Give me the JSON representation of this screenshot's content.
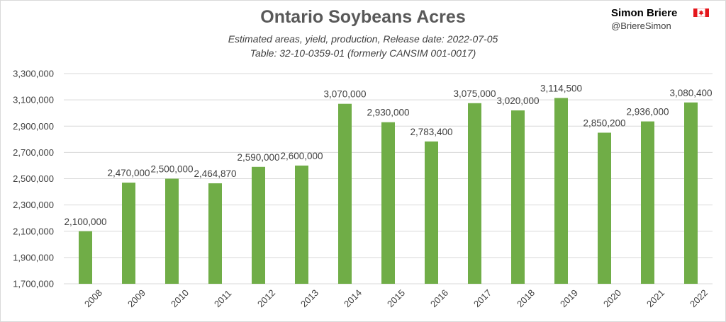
{
  "header": {
    "title": "Ontario Soybeans Acres",
    "subtitle_line1": "Estimated areas, yield, production, Release date: 2022-07-05",
    "subtitle_line2": "Table: 32-10-0359-01 (formerly CANSIM 001-0017)",
    "author": "Simon Briere",
    "handle": "@BriereSimon",
    "flag_icon": "canada-flag-icon"
  },
  "colors": {
    "bar": "#70ad47",
    "grid": "#d9d9d9",
    "text": "#404040",
    "flag_red": "#e4161c"
  },
  "chart_data": {
    "type": "bar",
    "title": "Ontario Soybeans Acres",
    "categories": [
      "2008",
      "2009",
      "2010",
      "2011",
      "2012",
      "2013",
      "2014",
      "2015",
      "2016",
      "2017",
      "2018",
      "2019",
      "2020",
      "2021",
      "2022"
    ],
    "values": [
      2100000,
      2470000,
      2500000,
      2464870,
      2590000,
      2600000,
      3070000,
      2930000,
      2783400,
      3075000,
      3020000,
      3114500,
      2850200,
      2936000,
      3080400
    ],
    "value_labels": [
      "2,100,000",
      "2,470,000",
      "2,500,000",
      "2,464,870",
      "2,590,000",
      "2,600,000",
      "3,070,000",
      "2,930,000",
      "2,783,400",
      "3,075,000",
      "3,020,000",
      "3,114,500",
      "2,850,200",
      "2,936,000",
      "3,080,400"
    ],
    "ylim": [
      1700000,
      3300000
    ],
    "yticks": [
      1700000,
      1900000,
      2100000,
      2300000,
      2500000,
      2700000,
      2900000,
      3100000,
      3300000
    ],
    "ytick_labels": [
      "1,700,000",
      "1,900,000",
      "2,100,000",
      "2,300,000",
      "2,500,000",
      "2,700,000",
      "2,900,000",
      "3,100,000",
      "3,300,000"
    ],
    "xlabel": "",
    "ylabel": "",
    "grid": true,
    "legend": "none"
  }
}
